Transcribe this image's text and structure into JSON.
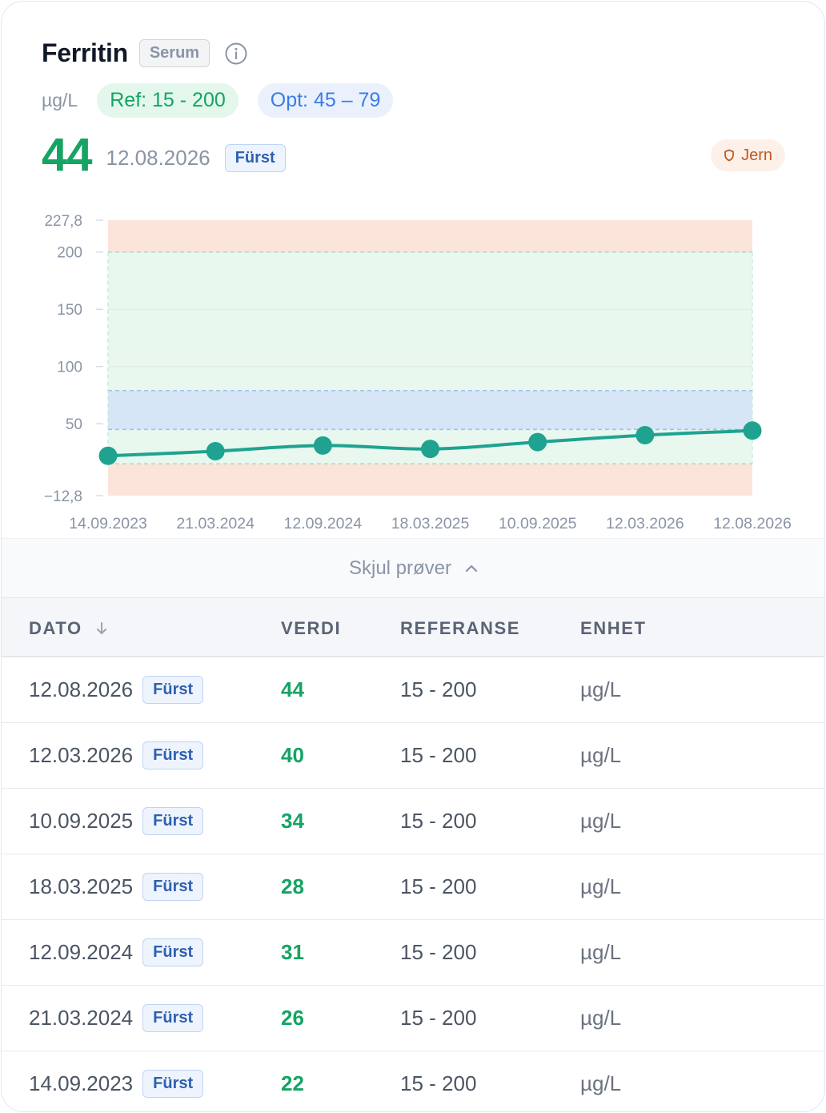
{
  "header": {
    "title": "Ferritin",
    "specimen": "Serum",
    "unit": "µg/L",
    "ref_range": "Ref: 15 - 200",
    "opt_range": "Opt: 45 – 79",
    "latest_value": "44",
    "latest_date": "12.08.2026",
    "latest_source": "Fürst",
    "category_tag": "Jern"
  },
  "colors": {
    "value_green": "#16a364",
    "line_teal": "#1fa390",
    "ref_band": "#e8f8ef",
    "opt_band": "#d6e6f6",
    "out_of_range": "#fbe4da",
    "brand_blue": "#3b7be8",
    "tag_orange": "#c2581c"
  },
  "chart_data": {
    "type": "line",
    "ylim": [
      -12.8,
      227.8
    ],
    "y_ticks": [
      "227,8",
      "200",
      "150",
      "100",
      "50",
      "−12,8"
    ],
    "y_tick_values": [
      227.8,
      200,
      150,
      100,
      50,
      -12.8
    ],
    "x": [
      "14.09.2023",
      "21.03.2024",
      "12.09.2024",
      "18.03.2025",
      "10.09.2025",
      "12.03.2026",
      "12.08.2026"
    ],
    "values": [
      22,
      26,
      31,
      28,
      34,
      40,
      44
    ],
    "reference_range": [
      15,
      200
    ],
    "optimal_range": [
      45,
      79
    ],
    "grid": true
  },
  "toggle": {
    "label": "Skjul prøver"
  },
  "table": {
    "columns": [
      "DATO",
      "VERDI",
      "REFERANSE",
      "ENHET"
    ],
    "rows": [
      {
        "date": "12.08.2026",
        "source": "Fürst",
        "value": "44",
        "ref": "15 - 200",
        "unit": "µg/L"
      },
      {
        "date": "12.03.2026",
        "source": "Fürst",
        "value": "40",
        "ref": "15 - 200",
        "unit": "µg/L"
      },
      {
        "date": "10.09.2025",
        "source": "Fürst",
        "value": "34",
        "ref": "15 - 200",
        "unit": "µg/L"
      },
      {
        "date": "18.03.2025",
        "source": "Fürst",
        "value": "28",
        "ref": "15 - 200",
        "unit": "µg/L"
      },
      {
        "date": "12.09.2024",
        "source": "Fürst",
        "value": "31",
        "ref": "15 - 200",
        "unit": "µg/L"
      },
      {
        "date": "21.03.2024",
        "source": "Fürst",
        "value": "26",
        "ref": "15 - 200",
        "unit": "µg/L"
      },
      {
        "date": "14.09.2023",
        "source": "Fürst",
        "value": "22",
        "ref": "15 - 200",
        "unit": "µg/L"
      }
    ]
  }
}
